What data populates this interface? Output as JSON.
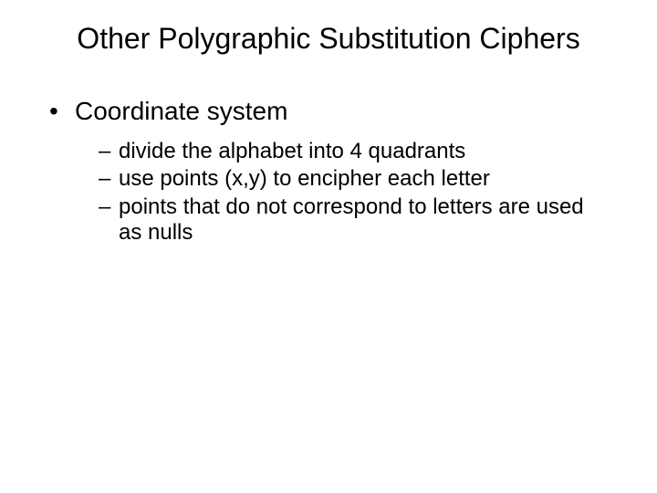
{
  "slide": {
    "title": "Other Polygraphic Substitution Ciphers",
    "title_fontsize": 32,
    "background_color": "#ffffff",
    "text_color": "#000000",
    "font_family": "Arial",
    "bullets": {
      "level1": [
        {
          "bullet_char": "•",
          "text": "Coordinate system",
          "fontsize": 28
        }
      ],
      "level2": [
        {
          "dash": "–",
          "text": "divide the alphabet into 4 quadrants",
          "fontsize": 24
        },
        {
          "dash": "–",
          "text": "use points (x,y) to encipher each letter",
          "fontsize": 24
        },
        {
          "dash": "–",
          "text": "points that do not correspond to letters are used as nulls",
          "fontsize": 24
        }
      ]
    }
  }
}
